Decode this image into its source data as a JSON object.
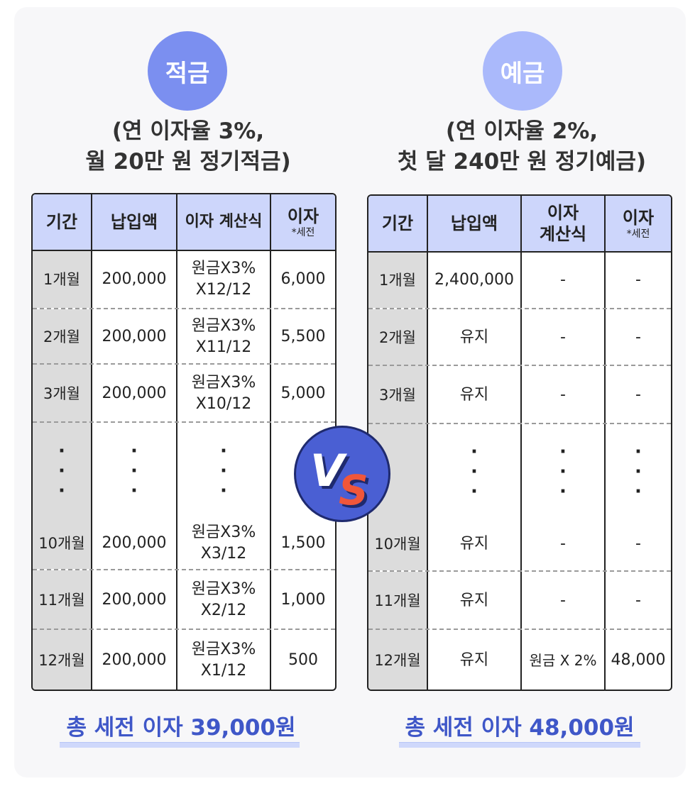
{
  "left": {
    "badge": "적금",
    "subtitle_line1": "(연 이자율 3%,",
    "subtitle_line2": "월 20만 원 정기적금)",
    "headers": [
      "기간",
      "납입액",
      "이자 계산식",
      "이자"
    ],
    "header_note": "*세전",
    "rows": [
      {
        "period": "1개월",
        "amount": "200,000",
        "formula1": "원금X3%",
        "formula2": "X12/12",
        "interest": "6,000"
      },
      {
        "period": "2개월",
        "amount": "200,000",
        "formula1": "원금X3%",
        "formula2": "X11/12",
        "interest": "5,500"
      },
      {
        "period": "3개월",
        "amount": "200,000",
        "formula1": "원금X3%",
        "formula2": "X10/12",
        "interest": "5,000"
      },
      {
        "period": "10개월",
        "amount": "200,000",
        "formula1": "원금X3%",
        "formula2": "X3/12",
        "interest": "1,500"
      },
      {
        "period": "11개월",
        "amount": "200,000",
        "formula1": "원금X3%",
        "formula2": "X2/12",
        "interest": "1,000"
      },
      {
        "period": "12개월",
        "amount": "200,000",
        "formula1": "원금X3%",
        "formula2": "X1/12",
        "interest": "500"
      }
    ],
    "dots": "·",
    "total": "총 세전 이자 39,000원"
  },
  "right": {
    "badge": "예금",
    "subtitle_line1": "(연 이자율 2%,",
    "subtitle_line2": "첫 달 240만 원 정기예금)",
    "headers": [
      "기간",
      "납입액",
      "이자",
      "이자"
    ],
    "header3_line2": "계산식",
    "header_note": "*세전",
    "rows": [
      {
        "period": "1개월",
        "amount": "2,400,000",
        "formula": "-",
        "interest": "-"
      },
      {
        "period": "2개월",
        "amount": "유지",
        "formula": "-",
        "interest": "-"
      },
      {
        "period": "3개월",
        "amount": "유지",
        "formula": "-",
        "interest": "-"
      },
      {
        "period": "10개월",
        "amount": "유지",
        "formula": "-",
        "interest": "-"
      },
      {
        "period": "11개월",
        "amount": "유지",
        "formula": "-",
        "interest": "-"
      },
      {
        "period": "12개월",
        "amount": "유지",
        "formula": "원금 X 2%",
        "interest": "48,000"
      }
    ],
    "dots": "·",
    "total": "총 세전 이자 48,000원"
  },
  "vs": {
    "v": "V",
    "s": "S"
  },
  "colors": {
    "left_badge": "#7b8ff0",
    "right_badge": "#aab9fb",
    "header": "#cdd6fb",
    "total": "#3f57c8",
    "vs_circle": "#4a5fd3",
    "vs_s": "#f0563a"
  }
}
